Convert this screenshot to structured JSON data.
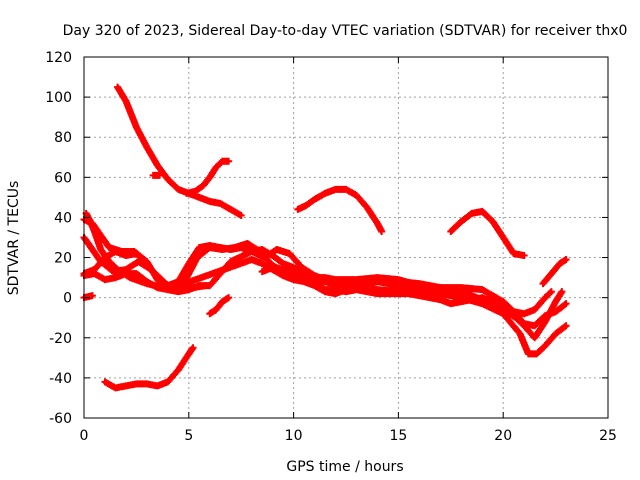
{
  "chart_data": {
    "type": "scatter",
    "title": "Day 320 of 2023, Sidereal Day-to-day VTEC variation (SDTVAR) for receiver thx0",
    "xlabel": "GPS time / hours",
    "ylabel": "SDTVAR / TECUs",
    "xlim": [
      0,
      25
    ],
    "ylim": [
      -60,
      120
    ],
    "xticks": [
      0,
      5,
      10,
      15,
      20,
      25
    ],
    "yticks": [
      -60,
      -40,
      -20,
      0,
      20,
      40,
      60,
      80,
      100,
      120
    ],
    "grid": true,
    "marker": "plus",
    "color": "#ff0000",
    "series": [
      {
        "name": "arc-high-early",
        "points": [
          [
            1.6,
            105
          ],
          [
            2.0,
            98
          ],
          [
            2.5,
            85
          ],
          [
            3.0,
            75
          ],
          [
            3.5,
            66
          ],
          [
            4.0,
            59
          ],
          [
            4.5,
            54
          ],
          [
            5.0,
            52
          ],
          [
            5.5,
            50
          ],
          [
            6.0,
            48
          ],
          [
            6.5,
            47
          ],
          [
            7.0,
            44
          ],
          [
            7.5,
            41
          ]
        ]
      },
      {
        "name": "arc-rise-6h",
        "points": [
          [
            4.9,
            52
          ],
          [
            5.3,
            53
          ],
          [
            5.7,
            56
          ],
          [
            6.0,
            60
          ],
          [
            6.3,
            65
          ],
          [
            6.6,
            68
          ],
          [
            6.9,
            68
          ]
        ]
      },
      {
        "name": "arc-short-3h",
        "points": [
          [
            3.3,
            61
          ],
          [
            3.6,
            61
          ]
        ]
      },
      {
        "name": "arc-bump-12h",
        "points": [
          [
            10.2,
            44
          ],
          [
            10.6,
            46
          ],
          [
            11.0,
            49
          ],
          [
            11.5,
            52
          ],
          [
            12.0,
            54
          ],
          [
            12.5,
            54
          ],
          [
            13.0,
            51
          ],
          [
            13.5,
            45
          ],
          [
            14.0,
            37
          ],
          [
            14.2,
            33
          ]
        ]
      },
      {
        "name": "arc-bump-19h",
        "points": [
          [
            17.5,
            33
          ],
          [
            18.0,
            38
          ],
          [
            18.5,
            42
          ],
          [
            19.0,
            43
          ],
          [
            19.5,
            38
          ],
          [
            20.0,
            30
          ],
          [
            20.5,
            22
          ],
          [
            21.0,
            21
          ]
        ]
      },
      {
        "name": "arc-end-22h",
        "points": [
          [
            21.9,
            7
          ],
          [
            22.3,
            12
          ],
          [
            22.7,
            17
          ],
          [
            23.0,
            19
          ]
        ]
      },
      {
        "name": "arc-low-early",
        "points": [
          [
            1.0,
            -42
          ],
          [
            1.5,
            -45
          ],
          [
            2.0,
            -44
          ],
          [
            2.5,
            -43
          ],
          [
            3.0,
            -43
          ],
          [
            3.5,
            -44
          ],
          [
            4.0,
            -42
          ],
          [
            4.5,
            -36
          ],
          [
            5.0,
            -28
          ],
          [
            5.2,
            -25
          ]
        ]
      },
      {
        "name": "arc-short-6h",
        "points": [
          [
            6.0,
            -8
          ],
          [
            6.3,
            -6
          ],
          [
            6.6,
            -2
          ],
          [
            6.9,
            0
          ]
        ]
      },
      {
        "name": "arc-start-zero",
        "points": [
          [
            0.0,
            0
          ],
          [
            0.4,
            1
          ]
        ]
      },
      {
        "name": "arc-a",
        "points": [
          [
            0.1,
            42
          ],
          [
            0.3,
            38
          ],
          [
            0.5,
            33
          ],
          [
            0.8,
            24
          ],
          [
            1.2,
            18
          ],
          [
            1.6,
            14
          ],
          [
            2.2,
            10
          ],
          [
            3.0,
            7
          ],
          [
            3.8,
            5
          ],
          [
            4.6,
            4
          ],
          [
            5.2,
            5
          ],
          [
            5.8,
            6
          ]
        ]
      },
      {
        "name": "arc-b",
        "points": [
          [
            0.0,
            30
          ],
          [
            0.4,
            24
          ],
          [
            0.8,
            18
          ],
          [
            1.4,
            13
          ],
          [
            2.0,
            14
          ],
          [
            2.6,
            18
          ],
          [
            3.2,
            14
          ],
          [
            3.8,
            7
          ],
          [
            4.3,
            5
          ],
          [
            4.8,
            8
          ],
          [
            5.4,
            20
          ],
          [
            6.0,
            25
          ],
          [
            6.6,
            24
          ],
          [
            7.2,
            25
          ],
          [
            7.8,
            27
          ],
          [
            8.4,
            23
          ],
          [
            9.0,
            16
          ],
          [
            9.6,
            13
          ],
          [
            10.2,
            10
          ],
          [
            10.8,
            9
          ],
          [
            11.5,
            8
          ],
          [
            12.2,
            6
          ],
          [
            13.0,
            7
          ],
          [
            14.0,
            8
          ],
          [
            15.0,
            6
          ],
          [
            16.0,
            4
          ],
          [
            17.0,
            2
          ],
          [
            18.0,
            0
          ],
          [
            19.0,
            -3
          ],
          [
            20.0,
            -8
          ],
          [
            20.8,
            -18
          ],
          [
            21.2,
            -28
          ],
          [
            21.6,
            -28
          ],
          [
            22.0,
            -24
          ],
          [
            22.5,
            -18
          ],
          [
            23.0,
            -14
          ]
        ]
      },
      {
        "name": "arc-c",
        "points": [
          [
            0.0,
            12
          ],
          [
            0.5,
            14
          ],
          [
            1.0,
            20
          ],
          [
            1.5,
            23
          ],
          [
            2.0,
            21
          ],
          [
            2.5,
            22
          ],
          [
            3.0,
            16
          ],
          [
            3.5,
            11
          ],
          [
            4.0,
            6
          ],
          [
            4.5,
            8
          ],
          [
            5.0,
            17
          ],
          [
            5.5,
            25
          ],
          [
            6.0,
            26
          ],
          [
            6.5,
            25
          ],
          [
            7.0,
            24
          ],
          [
            7.5,
            25
          ],
          [
            8.0,
            23
          ],
          [
            8.6,
            20
          ],
          [
            9.2,
            24
          ],
          [
            9.8,
            22
          ],
          [
            10.4,
            15
          ],
          [
            11.0,
            11
          ],
          [
            11.5,
            9
          ],
          [
            12.0,
            6
          ],
          [
            12.5,
            5
          ],
          [
            13.0,
            6
          ],
          [
            14.0,
            8
          ],
          [
            15.0,
            8
          ],
          [
            16.0,
            7
          ],
          [
            17.0,
            5
          ],
          [
            18.0,
            3
          ],
          [
            19.0,
            -1
          ],
          [
            20.0,
            -6
          ],
          [
            20.6,
            -10
          ],
          [
            21.0,
            -14
          ],
          [
            21.5,
            -20
          ],
          [
            22.0,
            -12
          ],
          [
            22.5,
            -2
          ],
          [
            22.8,
            3
          ]
        ]
      },
      {
        "name": "arc-d",
        "points": [
          [
            0.0,
            39
          ],
          [
            0.4,
            37
          ],
          [
            0.8,
            31
          ],
          [
            1.2,
            25
          ],
          [
            1.8,
            23
          ],
          [
            2.4,
            23
          ],
          [
            3.0,
            18
          ],
          [
            3.5,
            9
          ],
          [
            4.0,
            4
          ],
          [
            4.5,
            3
          ],
          [
            5.0,
            4
          ],
          [
            5.5,
            6
          ],
          [
            6.0,
            6
          ],
          [
            7.0,
            18
          ],
          [
            8.0,
            23
          ],
          [
            8.5,
            24
          ],
          [
            9.0,
            21
          ],
          [
            9.5,
            17
          ],
          [
            10.0,
            15
          ],
          [
            10.5,
            12
          ],
          [
            11.0,
            10
          ],
          [
            11.5,
            10
          ],
          [
            12.0,
            9
          ],
          [
            13.0,
            9
          ],
          [
            14.0,
            10
          ],
          [
            15.0,
            9
          ],
          [
            16.0,
            6
          ],
          [
            17.0,
            5
          ],
          [
            17.5,
            5
          ],
          [
            18.0,
            5
          ],
          [
            19.0,
            4
          ],
          [
            20.0,
            -2
          ],
          [
            20.5,
            -7
          ],
          [
            21.0,
            -13
          ],
          [
            21.5,
            -14
          ],
          [
            22.0,
            -9
          ],
          [
            22.5,
            -7
          ],
          [
            23.0,
            -3
          ]
        ]
      },
      {
        "name": "arc-e",
        "points": [
          [
            0.0,
            11
          ],
          [
            0.5,
            12
          ],
          [
            1.0,
            9
          ],
          [
            1.5,
            10
          ],
          [
            2.0,
            12
          ],
          [
            2.5,
            12
          ],
          [
            3.0,
            8
          ],
          [
            3.5,
            5
          ],
          [
            4.0,
            4
          ],
          [
            8.0,
            19
          ],
          [
            8.5,
            17
          ],
          [
            9.0,
            14
          ],
          [
            9.5,
            11
          ],
          [
            10.0,
            9
          ],
          [
            10.5,
            8
          ],
          [
            11.0,
            6
          ],
          [
            11.5,
            3
          ],
          [
            12.0,
            2
          ],
          [
            12.5,
            4
          ],
          [
            13.0,
            6
          ],
          [
            14.0,
            4
          ],
          [
            15.0,
            3
          ],
          [
            16.0,
            1
          ],
          [
            17.0,
            -1
          ],
          [
            17.5,
            -3
          ],
          [
            18.0,
            -2
          ],
          [
            19.0,
            0
          ],
          [
            19.5,
            -2
          ],
          [
            20.0,
            -5
          ],
          [
            20.5,
            -7
          ],
          [
            21.0,
            -8
          ],
          [
            21.5,
            -6
          ],
          [
            22.0,
            0
          ],
          [
            22.3,
            3
          ]
        ]
      },
      {
        "name": "arc-f",
        "points": [
          [
            8.5,
            13
          ],
          [
            9.0,
            15
          ],
          [
            9.5,
            14
          ],
          [
            10.0,
            12
          ],
          [
            10.5,
            10
          ],
          [
            11.0,
            8
          ],
          [
            11.5,
            4
          ],
          [
            12.0,
            4
          ],
          [
            12.5,
            3
          ],
          [
            13.0,
            4
          ],
          [
            14.0,
            2
          ],
          [
            15.0,
            2
          ],
          [
            16.0,
            2
          ],
          [
            17.0,
            3
          ],
          [
            17.5,
            1
          ],
          [
            18.0,
            0
          ],
          [
            19.0,
            -2
          ],
          [
            19.5,
            -3
          ],
          [
            20.0,
            -6
          ],
          [
            20.3,
            -9
          ]
        ]
      }
    ]
  }
}
